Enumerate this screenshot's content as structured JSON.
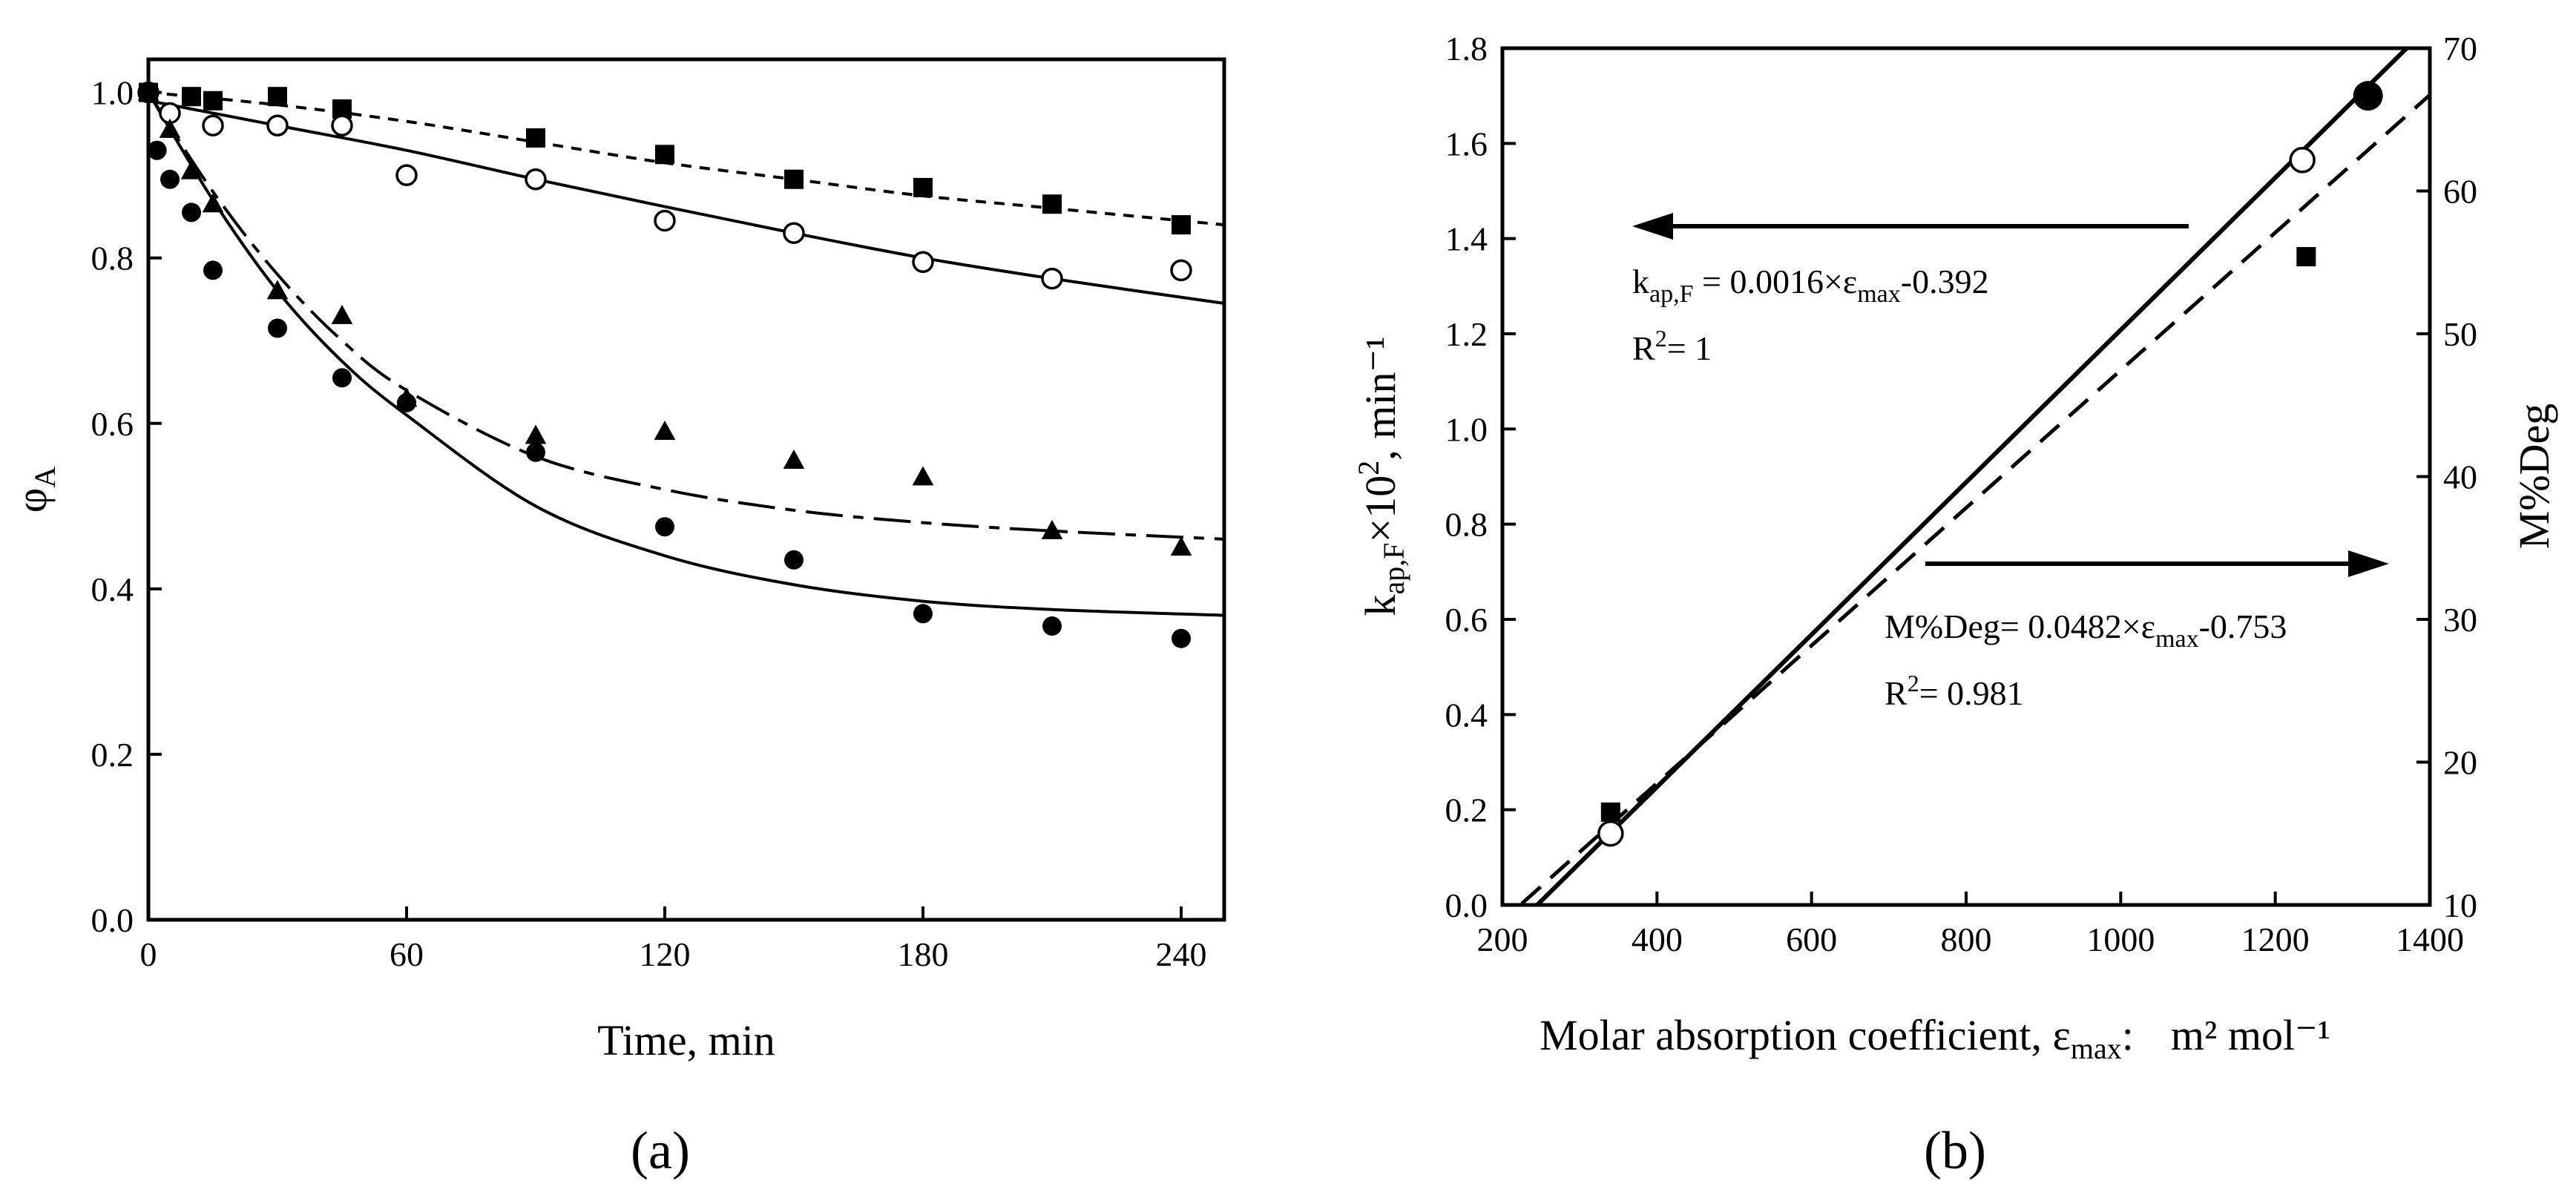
{
  "chart_data": [
    {
      "type": "scatter",
      "panel_label": "(a)",
      "xlabel": "Time, min",
      "ylabel": "φ",
      "ylabel_sub": "A",
      "xlim": [
        0,
        250
      ],
      "ylim": [
        0,
        1.04
      ],
      "xticks": [
        0,
        60,
        120,
        180,
        240
      ],
      "xtick_labels": [
        "0",
        "60",
        "120",
        "180",
        "240"
      ],
      "yticks": [
        0,
        0.2,
        0.4,
        0.6,
        0.8,
        1.0
      ],
      "ytick_labels": [
        "0.0",
        "0.2",
        "0.4",
        "0.6",
        "0.8",
        "1.0"
      ],
      "series": [
        {
          "name": "squares",
          "marker": "square-filled",
          "x": [
            0,
            10,
            15,
            30,
            45,
            90,
            120,
            150,
            180,
            210,
            240
          ],
          "y": [
            1.0,
            0.995,
            0.99,
            0.995,
            0.98,
            0.945,
            0.925,
            0.895,
            0.885,
            0.865,
            0.84
          ],
          "fit": {
            "style": "short-dash",
            "x": [
              0,
              30,
              60,
              90,
              120,
              150,
              180,
              210,
              250
            ],
            "y": [
              1.0,
              0.985,
              0.965,
              0.94,
              0.915,
              0.895,
              0.875,
              0.86,
              0.84
            ]
          }
        },
        {
          "name": "open circles",
          "marker": "circle-open",
          "x": [
            0,
            5,
            15,
            30,
            45,
            60,
            90,
            120,
            150,
            180,
            210,
            240
          ],
          "y": [
            1.0,
            0.975,
            0.96,
            0.96,
            0.96,
            0.9,
            0.895,
            0.845,
            0.83,
            0.795,
            0.775,
            0.785
          ],
          "fit": {
            "style": "solid",
            "x": [
              0,
              30,
              60,
              90,
              120,
              150,
              180,
              210,
              250
            ],
            "y": [
              0.99,
              0.96,
              0.93,
              0.895,
              0.862,
              0.83,
              0.8,
              0.775,
              0.745
            ]
          }
        },
        {
          "name": "triangles",
          "marker": "triangle-filled",
          "x": [
            0,
            5,
            10,
            15,
            30,
            45,
            60,
            90,
            120,
            150,
            180,
            210,
            240
          ],
          "y": [
            1.0,
            0.955,
            0.905,
            0.865,
            0.76,
            0.73,
            0.63,
            0.585,
            0.59,
            0.555,
            0.535,
            0.47,
            0.45
          ],
          "fit": {
            "style": "long-short-dash",
            "x": [
              0,
              15,
              30,
              45,
              60,
              90,
              120,
              150,
              180,
              210,
              250
            ],
            "y": [
              1.0,
              0.88,
              0.78,
              0.7,
              0.64,
              0.56,
              0.52,
              0.495,
              0.48,
              0.47,
              0.46
            ]
          }
        },
        {
          "name": "filled circles",
          "marker": "circle-filled",
          "x": [
            0,
            2,
            5,
            10,
            15,
            30,
            45,
            60,
            90,
            120,
            150,
            180,
            210,
            240
          ],
          "y": [
            1.0,
            0.93,
            0.895,
            0.855,
            0.785,
            0.715,
            0.655,
            0.625,
            0.565,
            0.475,
            0.435,
            0.37,
            0.355,
            0.34
          ],
          "fit": {
            "style": "solid",
            "x": [
              0,
              15,
              30,
              45,
              60,
              90,
              120,
              150,
              180,
              210,
              250
            ],
            "y": [
              1.0,
              0.87,
              0.76,
              0.675,
              0.61,
              0.5,
              0.44,
              0.405,
              0.385,
              0.375,
              0.368
            ]
          }
        }
      ]
    },
    {
      "type": "scatter",
      "panel_label": "(b)",
      "xlabel": "Molar absorption coefficient, ε",
      "xlabel_sub": "max",
      "xlabel_tail": ":",
      "xlabel_units": "m² mol⁻¹",
      "ylabel_left": {
        "main": "k",
        "sub": "ap,F",
        "rest": "×10",
        "sup": "2",
        "units": ",  min⁻¹"
      },
      "ylabel_right": "M%Deg",
      "xlim": [
        200,
        1400
      ],
      "ylim_left": [
        0,
        1.8
      ],
      "ylim_right": [
        10,
        70
      ],
      "xticks": [
        200,
        400,
        600,
        800,
        1000,
        1200,
        1400
      ],
      "xtick_labels": [
        "200",
        "400",
        "600",
        "800",
        "1000",
        "1200",
        "1400"
      ],
      "yticks_left": [
        0,
        0.2,
        0.4,
        0.6,
        0.8,
        1.0,
        1.2,
        1.4,
        1.6,
        1.8
      ],
      "ytick_labels_left": [
        "0.0",
        "0.2",
        "0.4",
        "0.6",
        "0.8",
        "1.0",
        "1.2",
        "1.4",
        "1.6",
        "1.8"
      ],
      "yticks_right": [
        10,
        20,
        30,
        40,
        50,
        60,
        70
      ],
      "ytick_labels_right": [
        "10",
        "20",
        "30",
        "40",
        "50",
        "60",
        "70"
      ],
      "series": [
        {
          "name": "k_ap,F (open circles)",
          "axis": "left",
          "marker": "circle-open",
          "x": [
            340,
            1235
          ],
          "y": [
            0.15,
            1.565
          ]
        },
        {
          "name": "k_ap,F (filled circle)",
          "axis": "left",
          "marker": "circle-filled",
          "x": [
            1320
          ],
          "y": [
            1.7
          ]
        },
        {
          "name": "M%Deg (squares)",
          "axis": "right",
          "marker": "square-filled",
          "x": [
            340,
            1240
          ],
          "y": [
            16.5,
            55.4
          ]
        }
      ],
      "fits": [
        {
          "name": "k fit",
          "axis": "left",
          "style": "solid",
          "slope": 0.0016,
          "intercept": -0.392,
          "x": [
            245,
            1400
          ]
        },
        {
          "name": "M%Deg fit",
          "axis": "right",
          "style": "dashed",
          "slope": 0.0482,
          "intercept": -0.753,
          "x": [
            225,
            1400
          ]
        }
      ],
      "annotations": {
        "eq1": {
          "pre": "k",
          "sub": "ap,F",
          "mid": " = 0.0016×ε",
          "sub2": "max",
          "post": "-0.392"
        },
        "r1": {
          "pre": "R",
          "sup": "2",
          "post": "= 1"
        },
        "eq2": {
          "pre": "M%Deg= 0.0482×ε",
          "sub": "max",
          "post": "-0.753"
        },
        "r2": {
          "pre": "R",
          "sup": "2",
          "post": "= 0.981"
        }
      },
      "arrows": [
        {
          "direction": "left",
          "points_to": "left axis"
        },
        {
          "direction": "right",
          "points_to": "right axis"
        }
      ]
    }
  ]
}
